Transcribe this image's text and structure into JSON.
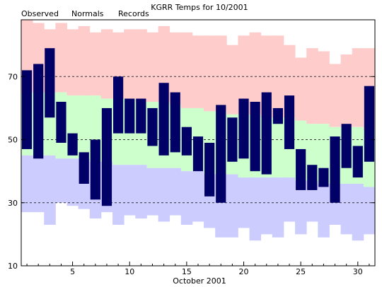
{
  "chart_data": {
    "type": "bar",
    "title": "KGRR Temps for 10/2001",
    "xlabel": "October 2001",
    "ylabel": "",
    "legend": [
      {
        "label": "Observed",
        "color": "#000080"
      },
      {
        "label": "Normals",
        "color": "#008000"
      },
      {
        "label": "Records",
        "color": "#dd88cc"
      }
    ],
    "legend_position": "top-left",
    "ylim": [
      10,
      88
    ],
    "yticks": [
      10,
      30,
      50,
      70
    ],
    "xlim": [
      0.5,
      31.5
    ],
    "xticks": [
      5,
      10,
      15,
      20,
      25,
      30
    ],
    "grid": "dashed lines at 30, 50, 70",
    "colors": {
      "record_band": "#ffcccc",
      "normal_band": "#ccffcc",
      "below_normal_band": "#ccccff",
      "observed": "#000066",
      "grid": "#333333"
    },
    "days": [
      1,
      2,
      3,
      4,
      5,
      6,
      7,
      8,
      9,
      10,
      11,
      12,
      13,
      14,
      15,
      16,
      17,
      18,
      19,
      20,
      21,
      22,
      23,
      24,
      25,
      26,
      27,
      28,
      29,
      30,
      31
    ],
    "record_high": [
      88,
      87,
      85,
      87,
      85,
      86,
      84,
      85,
      84,
      85,
      85,
      84,
      86,
      84,
      84,
      83,
      83,
      83,
      80,
      83,
      84,
      83,
      83,
      80,
      76,
      79,
      78,
      74,
      77,
      79,
      79
    ],
    "normal_high": [
      65,
      65,
      65,
      65,
      64,
      64,
      64,
      63,
      63,
      63,
      62,
      62,
      62,
      61,
      60,
      60,
      59,
      59,
      58,
      58,
      58,
      57,
      57,
      57,
      56,
      55,
      55,
      54,
      54,
      54,
      53
    ],
    "normal_low": [
      45,
      45,
      45,
      44,
      44,
      44,
      43,
      43,
      42,
      42,
      42,
      41,
      41,
      41,
      40,
      40,
      39,
      39,
      39,
      38,
      38,
      38,
      38,
      38,
      37,
      37,
      36,
      36,
      36,
      36,
      35
    ],
    "record_low": [
      27,
      27,
      23,
      30,
      29,
      28,
      25,
      27,
      23,
      26,
      25,
      26,
      24,
      26,
      23,
      24,
      22,
      19,
      19,
      22,
      18,
      20,
      19,
      24,
      20,
      24,
      19,
      23,
      20,
      18,
      20
    ],
    "observed_high": [
      72,
      74,
      79,
      62,
      52,
      46,
      50,
      60,
      70,
      63,
      63,
      60,
      68,
      65,
      54,
      51,
      49,
      61,
      57,
      63,
      62,
      65,
      60,
      64,
      47,
      42,
      41,
      51,
      55,
      48,
      67
    ],
    "observed_low": [
      47,
      44,
      57,
      49,
      45,
      36,
      31,
      29,
      52,
      52,
      52,
      48,
      45,
      46,
      45,
      40,
      32,
      30,
      43,
      44,
      40,
      39,
      55,
      47,
      34,
      34,
      35,
      30,
      41,
      38,
      43
    ]
  }
}
